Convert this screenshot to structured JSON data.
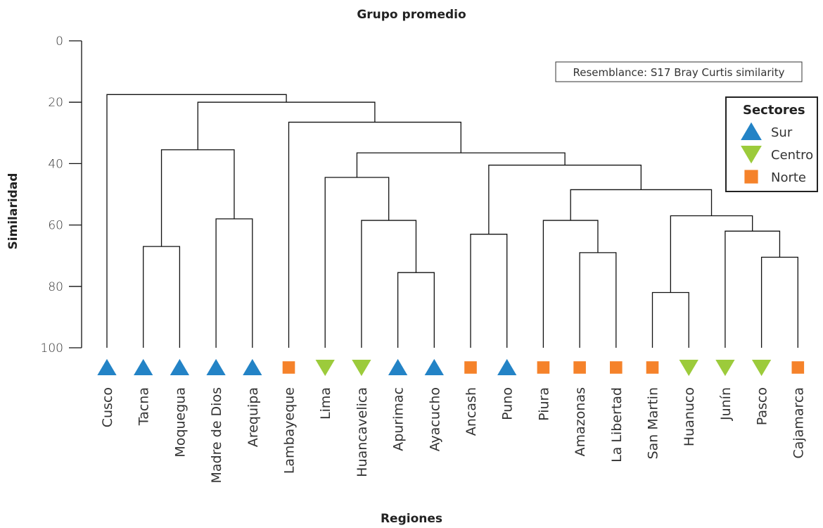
{
  "chart_data": {
    "type": "dendrogram",
    "title": "Grupo promedio",
    "xlabel": "Regiones",
    "ylabel": "Similaridad",
    "ylim": [
      0,
      100
    ],
    "yticks": [
      "0",
      "20",
      "40",
      "60",
      "80",
      "100"
    ],
    "annotation": "Resemblance: S17 Bray Curtis similarity",
    "legend": {
      "title": "Sectores",
      "placement": "top-right",
      "items": [
        {
          "name": "Sur",
          "shape": "triangle-up",
          "color": "#2383c6"
        },
        {
          "name": "Centro",
          "shape": "triangle-down",
          "color": "#9ccb3b"
        },
        {
          "name": "Norte",
          "shape": "square",
          "color": "#f5822a"
        }
      ]
    },
    "leaves": [
      {
        "name": "Cusco",
        "sector": "Sur"
      },
      {
        "name": "Tacna",
        "sector": "Sur"
      },
      {
        "name": "Moquegua",
        "sector": "Sur"
      },
      {
        "name": "Madre de Dios",
        "sector": "Sur"
      },
      {
        "name": "Arequipa",
        "sector": "Sur"
      },
      {
        "name": "Lambayeque",
        "sector": "Norte"
      },
      {
        "name": "Lima",
        "sector": "Centro"
      },
      {
        "name": "Huancavelica",
        "sector": "Centro"
      },
      {
        "name": "Apurimac",
        "sector": "Sur"
      },
      {
        "name": "Ayacucho",
        "sector": "Sur"
      },
      {
        "name": "Ancash",
        "sector": "Norte"
      },
      {
        "name": "Puno",
        "sector": "Sur"
      },
      {
        "name": "Piura",
        "sector": "Norte"
      },
      {
        "name": "Amazonas",
        "sector": "Norte"
      },
      {
        "name": "La Libertad",
        "sector": "Norte"
      },
      {
        "name": "San Martin",
        "sector": "Norte"
      },
      {
        "name": "Huanuco",
        "sector": "Centro"
      },
      {
        "name": "Junín",
        "sector": "Centro"
      },
      {
        "name": "Pasco",
        "sector": "Centro"
      },
      {
        "name": "Cajamarca",
        "sector": "Norte"
      }
    ],
    "merges": [
      {
        "id": "A",
        "left": 1,
        "right": 2,
        "similarity": 67
      },
      {
        "id": "B",
        "left": 3,
        "right": 4,
        "similarity": 58
      },
      {
        "id": "C",
        "left": "A",
        "right": "B",
        "similarity": 35.5
      },
      {
        "id": "D",
        "left": 8,
        "right": 9,
        "similarity": 75.5
      },
      {
        "id": "E",
        "left": 7,
        "right": "D",
        "similarity": 58.5
      },
      {
        "id": "F",
        "left": 6,
        "right": "E",
        "similarity": 44.5
      },
      {
        "id": "G",
        "left": 10,
        "right": 11,
        "similarity": 63
      },
      {
        "id": "H",
        "left": 13,
        "right": 14,
        "similarity": 69
      },
      {
        "id": "I",
        "left": 12,
        "right": "H",
        "similarity": 58.5
      },
      {
        "id": "J",
        "left": 15,
        "right": 16,
        "similarity": 82
      },
      {
        "id": "K",
        "left": 18,
        "right": 19,
        "similarity": 70.5
      },
      {
        "id": "L",
        "left": 17,
        "right": "K",
        "similarity": 62
      },
      {
        "id": "M",
        "left": "J",
        "right": "L",
        "similarity": 57
      },
      {
        "id": "N",
        "left": "I",
        "right": "M",
        "similarity": 48.5
      },
      {
        "id": "O",
        "left": "G",
        "right": "N",
        "similarity": 40.5
      },
      {
        "id": "P",
        "left": "F",
        "right": "O",
        "similarity": 36.5
      },
      {
        "id": "Q",
        "left": 5,
        "right": "P",
        "similarity": 26.5
      },
      {
        "id": "R",
        "left": "C",
        "right": "Q",
        "similarity": 20
      },
      {
        "id": "S",
        "left": 0,
        "right": "R",
        "similarity": 17.5
      }
    ]
  }
}
